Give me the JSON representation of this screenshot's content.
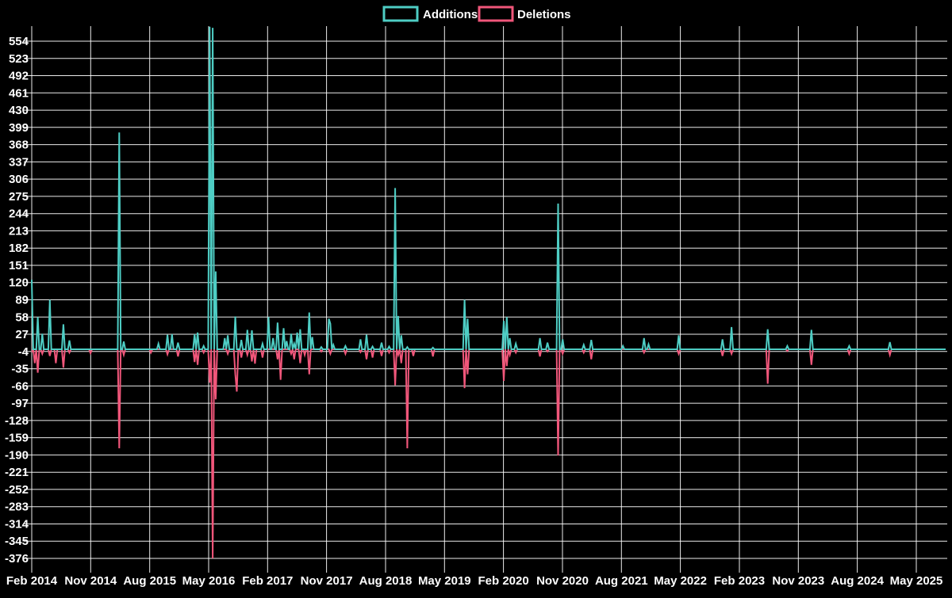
{
  "chart_data": {
    "type": "line",
    "title": "",
    "legend": {
      "additions": "Additions",
      "deletions": "Deletions"
    },
    "legend_position": "top-center",
    "grid": true,
    "background_color": "#000000",
    "text_color": "#ffffff",
    "colors": {
      "additions": "#4ECDC4",
      "deletions": "#F0567A"
    },
    "y_ticks": [
      554,
      523,
      492,
      461,
      430,
      399,
      368,
      337,
      306,
      275,
      244,
      213,
      182,
      151,
      120,
      89,
      58,
      27,
      -4,
      -35,
      -66,
      -97,
      -128,
      -159,
      -190,
      -221,
      -252,
      -283,
      -314,
      -345,
      -376
    ],
    "y_tick_step": 31,
    "x_tick_labels": [
      "Feb 2014",
      "Nov 2014",
      "Aug 2015",
      "May 2016",
      "Feb 2017",
      "Nov 2017",
      "Aug 2018",
      "May 2019",
      "Feb 2020",
      "Nov 2020",
      "Aug 2021",
      "May 2022",
      "Feb 2023",
      "Nov 2023",
      "Aug 2024",
      "May 2025"
    ],
    "x_tick_interval_months": 9,
    "x_unit": "week",
    "weeks_per_tick": 39.1,
    "n_weeks": 607,
    "baseline_value": 0,
    "series_note": "weekly additions (positive) and deletions (negative); weeks not listed are 0",
    "spikes": [
      [
        0,
        125,
        -5
      ],
      [
        2,
        0,
        -25
      ],
      [
        4,
        58,
        -42
      ],
      [
        7,
        28,
        -8
      ],
      [
        12,
        89,
        -12
      ],
      [
        16,
        0,
        -25
      ],
      [
        21,
        45,
        -33
      ],
      [
        25,
        16,
        -6
      ],
      [
        39,
        0,
        -7
      ],
      [
        58,
        390,
        -178
      ],
      [
        61,
        14,
        -10
      ],
      [
        79,
        0,
        -6
      ],
      [
        84,
        10,
        0
      ],
      [
        90,
        26,
        -9
      ],
      [
        93,
        27,
        0
      ],
      [
        97,
        12,
        -13
      ],
      [
        108,
        27,
        -23
      ],
      [
        110,
        30,
        -28
      ],
      [
        114,
        6,
        -6
      ],
      [
        118,
        580,
        -60
      ],
      [
        120,
        578,
        -376
      ],
      [
        122,
        140,
        -90
      ],
      [
        128,
        20,
        0
      ],
      [
        130,
        25,
        -8
      ],
      [
        135,
        59,
        -45
      ],
      [
        136,
        0,
        -76
      ],
      [
        139,
        17,
        -15
      ],
      [
        143,
        35,
        -10
      ],
      [
        146,
        34,
        -22
      ],
      [
        148,
        0,
        -26
      ],
      [
        153,
        10,
        -15
      ],
      [
        157,
        58,
        0
      ],
      [
        160,
        20,
        0
      ],
      [
        163,
        48,
        -18
      ],
      [
        165,
        0,
        -55
      ],
      [
        167,
        38,
        0
      ],
      [
        169,
        15,
        0
      ],
      [
        172,
        28,
        -8
      ],
      [
        174,
        10,
        -18
      ],
      [
        176,
        30,
        0
      ],
      [
        178,
        36,
        -25
      ],
      [
        181,
        0,
        -10
      ],
      [
        184,
        66,
        -45
      ],
      [
        186,
        22,
        0
      ],
      [
        192,
        4,
        -4
      ],
      [
        197,
        55,
        0
      ],
      [
        198,
        46,
        -8
      ],
      [
        200,
        8,
        0
      ],
      [
        208,
        6,
        -8
      ],
      [
        218,
        18,
        -5
      ],
      [
        222,
        26,
        -18
      ],
      [
        226,
        5,
        -15
      ],
      [
        232,
        12,
        -12
      ],
      [
        237,
        5,
        -6
      ],
      [
        241,
        290,
        -65
      ],
      [
        243,
        60,
        -10
      ],
      [
        245,
        25,
        -25
      ],
      [
        249,
        4,
        -178
      ],
      [
        253,
        0,
        -12
      ],
      [
        266,
        3,
        -13
      ],
      [
        287,
        89,
        -70
      ],
      [
        289,
        55,
        -45
      ],
      [
        313,
        51,
        -57
      ],
      [
        315,
        58,
        -30
      ],
      [
        317,
        20,
        -10
      ],
      [
        321,
        10,
        -6
      ],
      [
        337,
        20,
        -13
      ],
      [
        342,
        12,
        -4
      ],
      [
        349,
        262,
        -191
      ],
      [
        352,
        18,
        -8
      ],
      [
        366,
        8,
        -6
      ],
      [
        371,
        17,
        -18
      ],
      [
        392,
        6,
        0
      ],
      [
        406,
        20,
        -6
      ],
      [
        409,
        9,
        0
      ],
      [
        429,
        25,
        -8
      ],
      [
        458,
        18,
        -12
      ],
      [
        464,
        40,
        -8
      ],
      [
        488,
        36,
        -62
      ],
      [
        501,
        6,
        -3
      ],
      [
        517,
        35,
        -28
      ],
      [
        542,
        6,
        -8
      ],
      [
        569,
        13,
        -10
      ]
    ],
    "ylim": [
      -381,
      581
    ],
    "axis_range_shown": {
      "y_top_label": 554,
      "y_bottom_label": -376
    }
  }
}
